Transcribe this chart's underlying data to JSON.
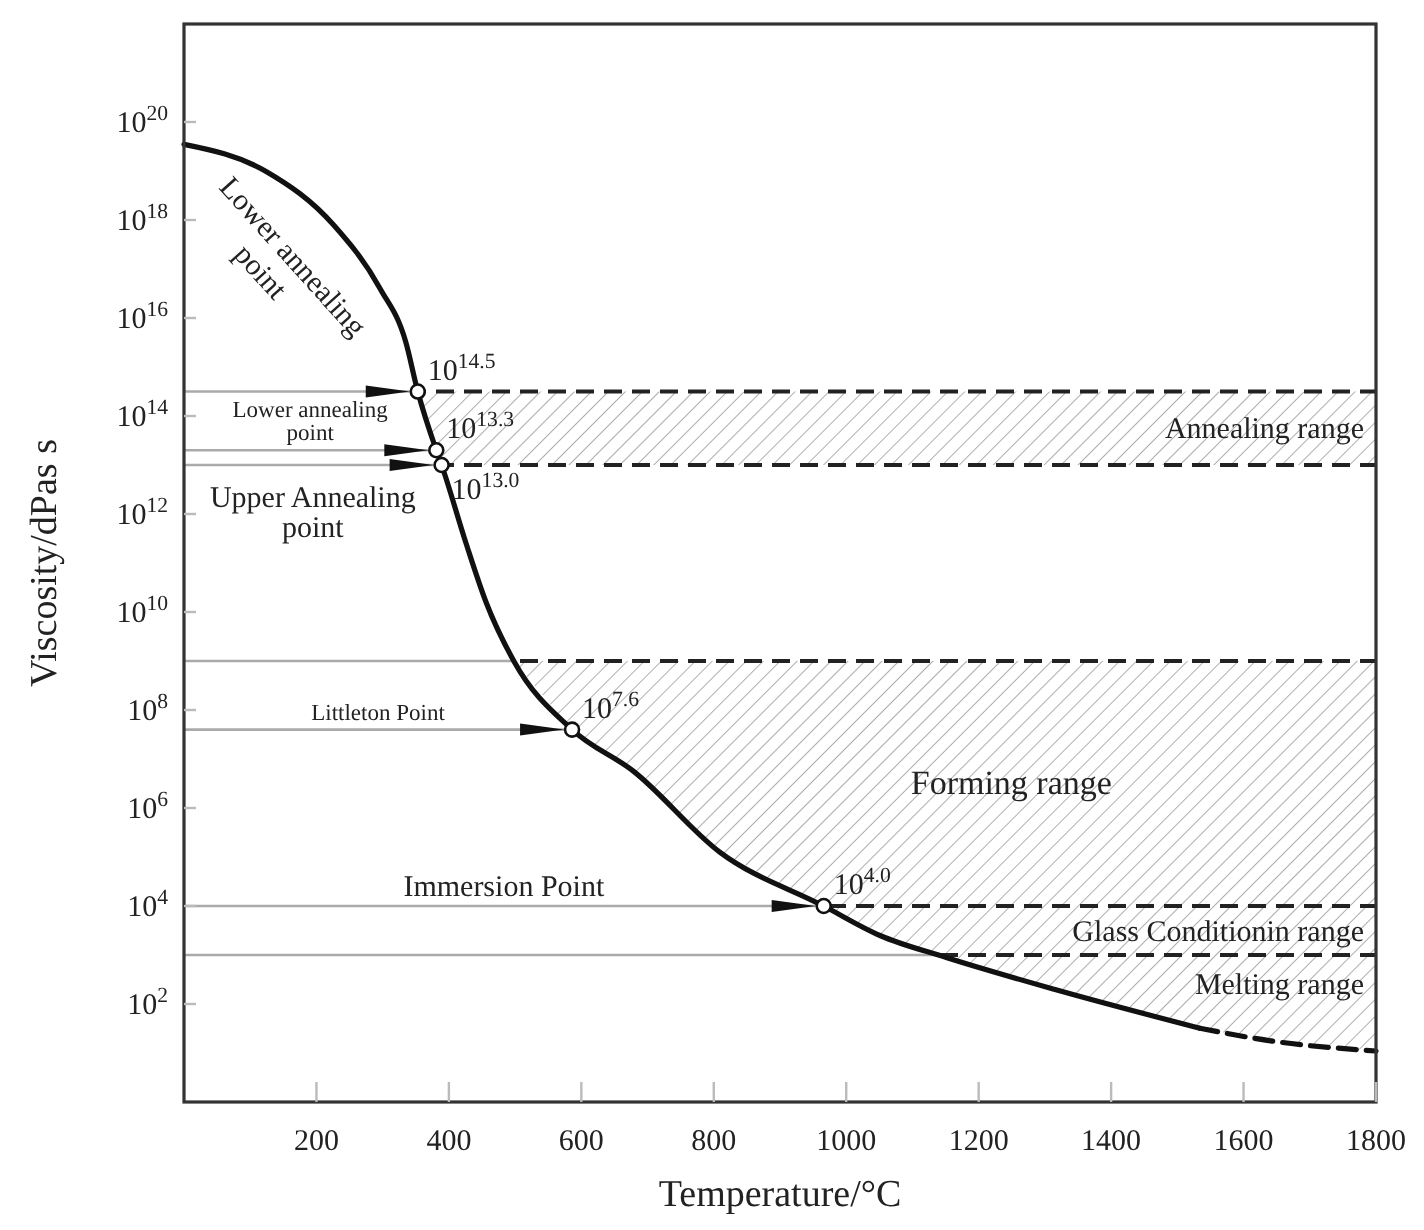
{
  "chart_data": {
    "type": "line",
    "xlabel": "Temperature/°C",
    "ylabel": "Viscosity/dPas s",
    "log": "y",
    "xlim": [
      0,
      1800
    ],
    "xticks": [
      200,
      400,
      600,
      800,
      1000,
      1200,
      1400,
      1600,
      1800
    ],
    "ylim": [
      1,
      1e+22
    ],
    "yticks": [
      {
        "value": 100,
        "label": "10$^{2}$"
      },
      {
        "value": 10000,
        "label": "10$^{4}$"
      },
      {
        "value": 1000000,
        "label": "10$^{6}$"
      },
      {
        "value": 100000000,
        "label": "10$^{8}$"
      },
      {
        "value": 10000000000,
        "label": "10$^{10}$"
      },
      {
        "value": 1000000000000.0,
        "label": "10$^{12}$"
      },
      {
        "value": 100000000000000.0,
        "label": "10$^{14}$"
      },
      {
        "value": 1e+16,
        "label": "10$^{16}$"
      },
      {
        "value": 1e+18,
        "label": "10$^{18}$"
      },
      {
        "value": 1e+20,
        "label": "10$^{20}$"
      }
    ],
    "series": [
      {
        "color": "#111111",
        "line_style": "solid",
        "marker": "none",
        "x": [
          0,
          124,
          226,
          296,
          335,
          353,
          381,
          389,
          426,
          456,
          498,
          586,
          679,
          809,
          966,
          1051,
          1151,
          1314,
          1534
        ],
        "values": [
          3.5e+19,
          9.8e+18,
          7.9e+17,
          4e+16,
          3200000000000000.0,
          316000000000000.0,
          20000000000000.0,
          10000000000000.0,
          250000000000.0,
          16000000000.0,
          1000000000.0,
          39800000.0,
          5600000.0,
          126000.0,
          10000.0,
          2500.0,
          890,
          200,
          32
        ]
      },
      {
        "color": "#111111",
        "line_style": "dashed",
        "marker": "none",
        "x": [
          1534,
          1650,
          1800
        ],
        "values": [
          32,
          17,
          11
        ]
      },
      {
        "type": "scatter",
        "color": "#111111",
        "marker": "circle",
        "x": [
          353,
          381,
          389,
          586,
          966
        ],
        "values": [
          316000000000000.0,
          20000000000000.0,
          10000000000000.0,
          39800000.0,
          10000.0
        ],
        "value_labels": [
          "10$^{14.5}$",
          "10$^{13.3}$",
          "10$^{13.0}$",
          "10$^{7.6}$",
          "10$^{4.0}$"
        ]
      }
    ],
    "ref_lines": [
      {
        "axis": "y",
        "value": 316000000000000.0,
        "label": null,
        "color": "#aaaaaa"
      },
      {
        "axis": "y",
        "value": 20000000000000.0,
        "label": "Lower annealing point",
        "color": "#aaaaaa"
      },
      {
        "axis": "y",
        "value": 10000000000000.0,
        "label": "Upper Annealing point",
        "color": "#aaaaaa"
      },
      {
        "axis": "y",
        "value": 1000000000.0,
        "label": null,
        "color": "#aaaaaa"
      },
      {
        "axis": "y",
        "value": 39800000.0,
        "label": "Littleton Point",
        "color": "#aaaaaa"
      },
      {
        "axis": "y",
        "value": 10000.0,
        "label": "Immersion Point",
        "color": "#aaaaaa"
      },
      {
        "axis": "y",
        "value": 1000,
        "label": null,
        "color": "#aaaaaa"
      }
    ],
    "bands": [
      {
        "axis": "y",
        "from": 10000000000000.0,
        "to": 316000000000000.0,
        "label": "Annealing range",
        "color": "#999999"
      },
      {
        "axis": "y",
        "from": 10000.0,
        "to": 1000000000.0,
        "label": "Forming range",
        "color": "#999999"
      },
      {
        "axis": "y",
        "from": 1000,
        "to": 10000.0,
        "label": "Glass Conditionin range",
        "color": "#999999"
      },
      {
        "axis": "y",
        "from": 1,
        "to": 1000,
        "label": "Melting range",
        "color": "#999999"
      }
    ],
    "annotations": [
      "Lower annealing point"
    ]
  }
}
